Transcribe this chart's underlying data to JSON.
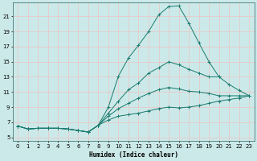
{
  "xlabel": "Humidex (Indice chaleur)",
  "xlim": [
    -0.5,
    23.5
  ],
  "ylim": [
    4.5,
    22.8
  ],
  "xticks": [
    0,
    1,
    2,
    3,
    4,
    5,
    6,
    7,
    8,
    9,
    10,
    11,
    12,
    13,
    14,
    15,
    16,
    17,
    18,
    19,
    20,
    21,
    22,
    23
  ],
  "yticks": [
    5,
    7,
    9,
    11,
    13,
    15,
    17,
    19,
    21
  ],
  "bg_color": "#cce9e9",
  "grid_color": "#e8c8c8",
  "line_color": "#1a7a6e",
  "lines": [
    {
      "x": [
        0,
        1,
        2,
        3,
        4,
        5,
        6,
        7,
        8,
        9,
        10,
        11,
        12,
        13,
        14,
        15,
        16,
        17,
        18,
        19,
        20,
        21,
        22,
        23
      ],
      "y": [
        6.5,
        6.1,
        6.2,
        6.2,
        6.2,
        6.1,
        5.9,
        5.7,
        6.6,
        9.0,
        13.1,
        15.5,
        17.2,
        19.0,
        21.2,
        22.3,
        22.4,
        20.1,
        17.5,
        15.0,
        13.0,
        null,
        null,
        null
      ]
    },
    {
      "x": [
        0,
        1,
        2,
        3,
        4,
        5,
        6,
        7,
        8,
        9,
        10,
        11,
        12,
        13,
        14,
        15,
        16,
        17,
        18,
        19,
        20,
        21,
        22,
        23
      ],
      "y": [
        6.5,
        6.1,
        6.2,
        6.2,
        6.2,
        6.1,
        5.9,
        5.7,
        6.6,
        8.2,
        9.8,
        11.3,
        12.2,
        13.5,
        14.2,
        15.0,
        14.6,
        14.0,
        13.5,
        13.0,
        13.0,
        12.0,
        11.2,
        10.5
      ]
    },
    {
      "x": [
        0,
        1,
        2,
        3,
        4,
        5,
        6,
        7,
        8,
        9,
        10,
        11,
        12,
        13,
        14,
        15,
        16,
        17,
        18,
        19,
        20,
        21,
        22,
        23
      ],
      "y": [
        6.5,
        6.1,
        6.2,
        6.2,
        6.2,
        6.1,
        5.9,
        5.7,
        6.6,
        7.8,
        8.8,
        9.5,
        10.2,
        10.8,
        11.3,
        11.6,
        11.4,
        11.1,
        11.0,
        10.8,
        10.5,
        10.5,
        10.5,
        10.5
      ]
    },
    {
      "x": [
        0,
        1,
        2,
        3,
        4,
        5,
        6,
        7,
        8,
        9,
        10,
        11,
        12,
        13,
        14,
        15,
        16,
        17,
        18,
        19,
        20,
        21,
        22,
        23
      ],
      "y": [
        6.5,
        6.1,
        6.2,
        6.2,
        6.2,
        6.1,
        5.9,
        5.7,
        6.6,
        7.3,
        7.8,
        8.0,
        8.2,
        8.5,
        8.8,
        9.0,
        8.9,
        9.0,
        9.2,
        9.5,
        9.8,
        10.0,
        10.2,
        10.5
      ]
    }
  ]
}
